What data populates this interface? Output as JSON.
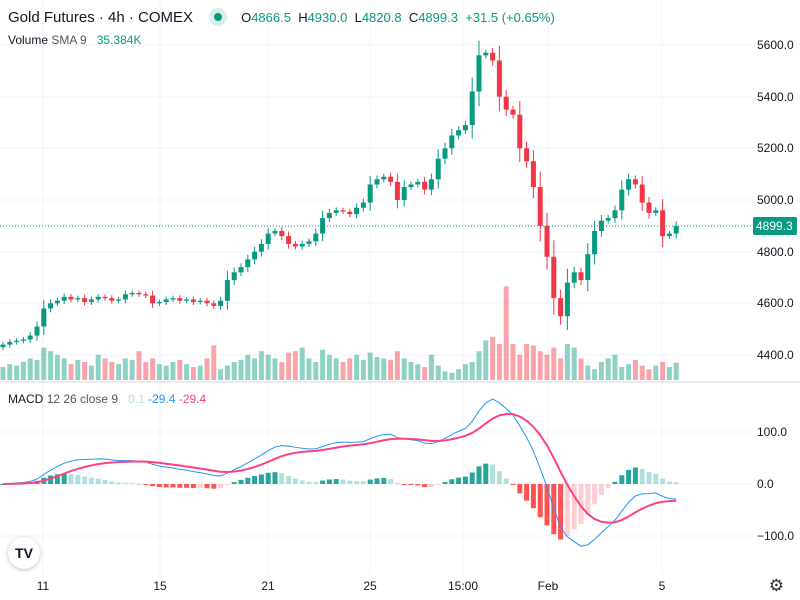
{
  "header": {
    "title": "Gold Futures · 4h · COMEX",
    "status_color": "#089981",
    "ohlc": {
      "o_label": "O",
      "o": "4866.5",
      "h_label": "H",
      "h": "4930.0",
      "l_label": "L",
      "l": "4820.8",
      "c_label": "C",
      "c": "4899.3",
      "change": "+31.5 (+0.65%)"
    }
  },
  "volume_legend": {
    "name": "Volume",
    "params": "SMA 9",
    "value": "35.384K"
  },
  "macd_legend": {
    "name": "MACD",
    "params": "12 26 close 9",
    "hist": "0.1",
    "macd": "-29.4",
    "signal": "-29.4"
  },
  "colors": {
    "up": "#089981",
    "down": "#f23645",
    "macd": "#2196f3",
    "signal": "#ff4081",
    "grid": "#f0f3fa"
  },
  "current_price_label": "4899.3",
  "logo_text": "TV",
  "settings_icon": "gear-icon",
  "chart_data": {
    "type": "candlestick",
    "price_axis_ticks": [
      "5600.0",
      "5400.0",
      "5200.0",
      "5000.0",
      "4800.0",
      "4600.0",
      "4400.0"
    ],
    "macd_axis_ticks": [
      "100.0",
      "0.0",
      "−100.0"
    ],
    "time_axis_ticks": [
      "11",
      "15",
      "21",
      "25",
      "15:00",
      "Feb",
      "5"
    ],
    "close": [
      4440,
      4450,
      4455,
      4460,
      4475,
      4510,
      4580,
      4600,
      4610,
      4625,
      4615,
      4620,
      4605,
      4615,
      4625,
      4620,
      4610,
      4615,
      4635,
      4640,
      4635,
      4630,
      4600,
      4605,
      4615,
      4620,
      4610,
      4615,
      4605,
      4610,
      4600,
      4590,
      4610,
      4690,
      4720,
      4740,
      4770,
      4800,
      4830,
      4870,
      4880,
      4860,
      4830,
      4820,
      4830,
      4840,
      4870,
      4930,
      4950,
      4960,
      4955,
      4945,
      4970,
      4990,
      5060,
      5080,
      5090,
      5070,
      5000,
      5050,
      5060,
      5070,
      5040,
      5080,
      5160,
      5200,
      5250,
      5270,
      5290,
      5420,
      5560,
      5570,
      5540,
      5400,
      5350,
      5330,
      5200,
      5150,
      5050,
      4900,
      4780,
      4620,
      4550,
      4680,
      4720,
      4690,
      4790,
      4880,
      4920,
      4930,
      4960,
      5040,
      5080,
      5060,
      4990,
      4950,
      4960,
      4860,
      4870,
      4899.3
    ],
    "volume_k": [
      18,
      22,
      20,
      25,
      30,
      28,
      45,
      40,
      35,
      30,
      22,
      28,
      25,
      20,
      35,
      30,
      25,
      22,
      30,
      28,
      40,
      25,
      30,
      22,
      20,
      25,
      28,
      22,
      18,
      20,
      30,
      48,
      15,
      20,
      25,
      28,
      35,
      30,
      40,
      35,
      30,
      25,
      38,
      40,
      45,
      30,
      25,
      42,
      35,
      30,
      25,
      30,
      35,
      28,
      38,
      32,
      30,
      28,
      40,
      30,
      25,
      22,
      18,
      35,
      20,
      12,
      10,
      15,
      22,
      25,
      40,
      55,
      60,
      50,
      130,
      50,
      35,
      50,
      48,
      40,
      35,
      45,
      30,
      50,
      45,
      30,
      20,
      15,
      25,
      30,
      35,
      18,
      22,
      28,
      20,
      15,
      20,
      25,
      18,
      24
    ]
  }
}
